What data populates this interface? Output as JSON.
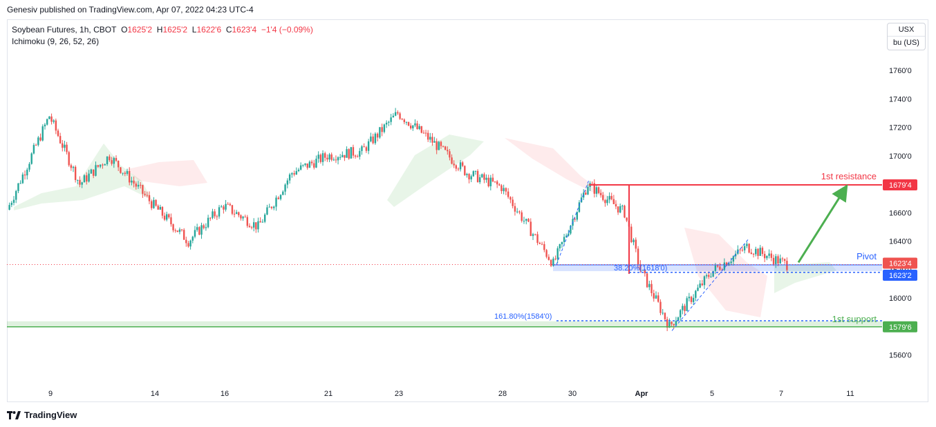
{
  "header": {
    "publisher": "Genesiv published on TradingView.com, Apr 07, 2022 04:23 UTC-4"
  },
  "legend": {
    "symbol": "Soybean Futures, 1h, CBOT",
    "o_label": "O",
    "o_value": "1625'2",
    "h_label": "H",
    "h_value": "1625'2",
    "l_label": "L",
    "l_value": "1622'6",
    "c_label": "C",
    "c_value": "1623'4",
    "change": "−1'4 (−0.09%)",
    "indicator": "Ichimoku (9, 26, 52, 26)"
  },
  "units": {
    "currency": "USX",
    "unit": "bu (US)"
  },
  "footer": {
    "brand": "TradingView"
  },
  "colors": {
    "up": "#26a69a",
    "down": "#ef5350",
    "resistance": "#f23645",
    "support": "#4caf50",
    "pivot": "#2962ff"
  },
  "chart_data": {
    "type": "candlestick",
    "y_ticks": [
      "1760'0",
      "1740'0",
      "1720'0",
      "1700'0",
      "1680'0",
      "1660'0",
      "1640'0",
      "1620'0",
      "1600'0",
      "1580'0",
      "1560'0"
    ],
    "y_tick_values": [
      1760,
      1740,
      1720,
      1700,
      1680,
      1660,
      1640,
      1620,
      1600,
      1580,
      1560
    ],
    "ylim": [
      1552.75,
      1776.75
    ],
    "x_ticks": [
      "9",
      "14",
      "16",
      "21",
      "23",
      "28",
      "30",
      "Apr",
      "5",
      "7",
      "11"
    ],
    "price_path": [
      {
        "date": "Mar 8",
        "price": 1662
      },
      {
        "date": "Mar 9",
        "price": 1728
      },
      {
        "date": "Mar 10",
        "price": 1680
      },
      {
        "date": "Mar 11",
        "price": 1700
      },
      {
        "date": "Mar 14",
        "price": 1665
      },
      {
        "date": "Mar 15",
        "price": 1640
      },
      {
        "date": "Mar 16",
        "price": 1665
      },
      {
        "date": "Mar 17",
        "price": 1650
      },
      {
        "date": "Mar 18",
        "price": 1688
      },
      {
        "date": "Mar 21",
        "price": 1700
      },
      {
        "date": "Mar 22",
        "price": 1703
      },
      {
        "date": "Mar 23",
        "price": 1730
      },
      {
        "date": "Mar 24",
        "price": 1710
      },
      {
        "date": "Mar 25",
        "price": 1688
      },
      {
        "date": "Mar 28",
        "price": 1678
      },
      {
        "date": "Mar 29",
        "price": 1624
      },
      {
        "date": "Mar 30",
        "price": 1680
      },
      {
        "date": "Mar 31",
        "price": 1660
      },
      {
        "date": "Apr 1",
        "price": 1620
      },
      {
        "date": "Apr 4",
        "price": 1580
      },
      {
        "date": "Apr 5",
        "price": 1618
      },
      {
        "date": "Apr 6",
        "price": 1636
      },
      {
        "date": "Apr 7",
        "price": 1623.5
      }
    ],
    "levels": [
      {
        "label": "1st resistance",
        "price": 1679.5,
        "tag": "1679'4",
        "color": "#f23645"
      },
      {
        "label": "Pivot",
        "price": 1623.25,
        "tag": "1623'2",
        "color": "#2962ff"
      },
      {
        "label": "1st support",
        "price": 1579.75,
        "tag": "1579'6",
        "color": "#4caf50"
      }
    ],
    "fib": [
      {
        "label": "38.20%(1618'0)",
        "price": 1618
      },
      {
        "label": "161.80%(1584'0)",
        "price": 1584
      }
    ],
    "last_price_tag": "1623'4"
  }
}
